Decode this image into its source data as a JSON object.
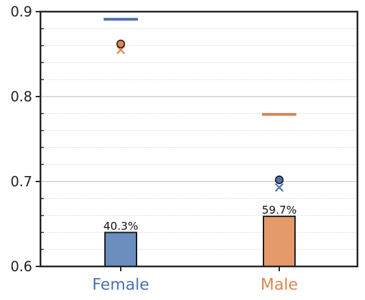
{
  "chart_data": {
    "type": "bar",
    "categories": [
      "Female",
      "Male"
    ],
    "category_colors": [
      "#4C72B0",
      "#DD8452"
    ],
    "bar_colors": [
      "#6C8EBF",
      "#E59A6B"
    ],
    "ylim": [
      0.6,
      0.9
    ],
    "y_ticks": [
      {
        "value": 0.6,
        "label": "0.6"
      },
      {
        "value": 0.7,
        "label": "0.7"
      },
      {
        "value": 0.8,
        "label": "0.8"
      },
      {
        "value": 0.9,
        "label": "0.9"
      }
    ],
    "y_minor_step": 0.02,
    "grid": "major solid, minor dotted",
    "bars": [
      {
        "category": "Female",
        "value": 0.64,
        "label": "40.3%"
      },
      {
        "category": "Male",
        "value": 0.659,
        "label": "59.7%"
      }
    ],
    "hlines": [
      {
        "category": "Female",
        "value": 0.891,
        "color": "#4C72B0"
      },
      {
        "category": "Male",
        "value": 0.779,
        "color": "#DD8452"
      }
    ],
    "circles": [
      {
        "category": "Female",
        "value": 0.862,
        "color": "#DD8452"
      },
      {
        "category": "Male",
        "value": 0.702,
        "color": "#4C72B0"
      }
    ],
    "crosses": [
      {
        "category": "Female",
        "value": 0.855,
        "color": "#DD8452"
      },
      {
        "category": "Male",
        "value": 0.693,
        "color": "#4C72B0"
      }
    ]
  }
}
